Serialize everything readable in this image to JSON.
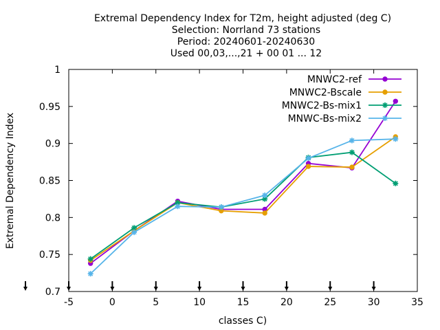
{
  "chart_data": {
    "type": "line",
    "title_lines": [
      "Extremal Dependency Index  for T2m, height adjusted (deg C)",
      "Selection: Norrland     73 stations",
      "Period: 20240601-20240630",
      "Used 00,03,...,21 + 00 01 ... 12"
    ],
    "xlabel": "classes C)",
    "ylabel": "Extremal Dependency Index",
    "xlim": [
      -5,
      35
    ],
    "ylim": [
      0.7,
      1
    ],
    "x_ticks": [
      -5,
      0,
      5,
      10,
      15,
      20,
      25,
      30,
      35
    ],
    "x_tick_labels": [
      "-5",
      "0",
      "5",
      "10",
      "15",
      "20",
      "25",
      "30",
      "35"
    ],
    "y_ticks": [
      0.7,
      0.75,
      0.8,
      0.85,
      0.9,
      0.95,
      1
    ],
    "y_tick_labels": [
      "0.7",
      "0.75",
      "0.8",
      "0.85",
      "0.9",
      "0.95",
      "1"
    ],
    "grid": false,
    "legend_position": "top-right",
    "bottom_arrow_markers_x": [
      -10,
      -5,
      0,
      5,
      10,
      15,
      20,
      25,
      30
    ],
    "x": [
      -2.5,
      2.5,
      7.5,
      12.5,
      17.5,
      22.5,
      27.5,
      32.5
    ],
    "series": [
      {
        "name": "MNWC2-ref",
        "color": "#9400d3",
        "marker": "circle",
        "values": [
          0.738,
          0.782,
          0.822,
          0.811,
          0.811,
          0.873,
          0.867,
          0.957
        ]
      },
      {
        "name": "MNWC2-Bscale",
        "color": "#e69f00",
        "marker": "circle",
        "values": [
          0.742,
          0.782,
          0.82,
          0.809,
          0.806,
          0.869,
          0.868,
          0.909
        ]
      },
      {
        "name": "MNWC2-Bs-mix1",
        "color": "#009e73",
        "marker": "star",
        "values": [
          0.744,
          0.786,
          0.82,
          0.814,
          0.825,
          0.881,
          0.888,
          0.846
        ]
      },
      {
        "name": "MNWC-Bs-mix2",
        "color": "#56b4e9",
        "marker": "star",
        "values": [
          0.724,
          0.78,
          0.815,
          0.814,
          0.83,
          0.88,
          0.904,
          0.906
        ]
      }
    ]
  }
}
